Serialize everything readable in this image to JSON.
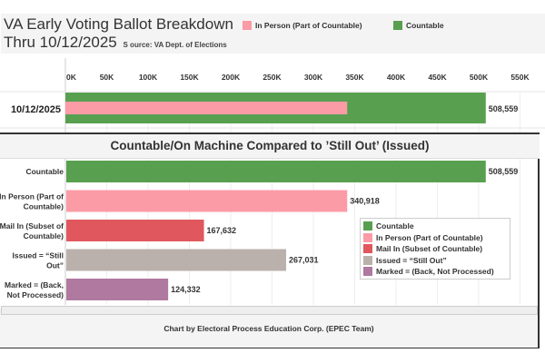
{
  "header": {
    "title_line1": "VA Early Voting Ballot Breakdown",
    "title_line2": "Thru 10/12/2025",
    "source": "S ource: VA Dept. of Elections"
  },
  "colors": {
    "countable": "#58a04f",
    "in_person": "#fb9ba6",
    "mail_in": "#e1575e",
    "issued": "#bab0ac",
    "marked": "#b0799f"
  },
  "top_legend": [
    {
      "label": "In Person  (Part of Countable)",
      "color": "#fb9ba6"
    },
    {
      "label": "Countable",
      "color": "#58a04f"
    }
  ],
  "chart_data": [
    {
      "type": "bar",
      "orientation": "horizontal",
      "title": "",
      "categories": [
        "10/12/2025"
      ],
      "series": [
        {
          "name": "Countable",
          "values": [
            508559
          ],
          "color": "#58a04f",
          "label": "508,559"
        },
        {
          "name": "In Person  (Part of Countable)",
          "values": [
            340918
          ],
          "color": "#fb9ba6"
        }
      ],
      "xlim": [
        0,
        550000
      ],
      "x_ticks": [
        "0K",
        "50K",
        "100K",
        "150K",
        "200K",
        "250K",
        "300K",
        "350K",
        "400K",
        "450K",
        "500K",
        "550K"
      ],
      "x_tick_values": [
        0,
        50000,
        100000,
        150000,
        200000,
        250000,
        300000,
        350000,
        400000,
        450000,
        500000,
        550000
      ],
      "grid": true,
      "legend": "top"
    },
    {
      "type": "bar",
      "orientation": "horizontal",
      "title": "Countable/On Machine Compared to ’Still Out’ (Issued)",
      "categories": [
        [
          "Countable"
        ],
        [
          "In Person  (Part of",
          "Countable)"
        ],
        [
          "Mail In (Subset of",
          "Countable)"
        ],
        [
          "Issued = “Still",
          "Out”"
        ],
        [
          "Marked = (Back,",
          "Not Processed)"
        ]
      ],
      "values": [
        508559,
        340918,
        167632,
        267031,
        124332
      ],
      "value_labels": [
        "508,559",
        "340,918",
        "167,632",
        "267,031",
        "124,332"
      ],
      "colors": [
        "#58a04f",
        "#fb9ba6",
        "#e1575e",
        "#bab0ac",
        "#b0799f"
      ],
      "xlim": [
        0,
        550000
      ],
      "grid": true,
      "legend": "bottom-right",
      "legend_entries": [
        {
          "label": "Countable",
          "color": "#58a04f"
        },
        {
          "label": "In Person  (Part of Countable)",
          "color": "#fb9ba6"
        },
        {
          "label": "Mail In (Subset of Countable)",
          "color": "#e1575e"
        },
        {
          "label": "Issued = “Still Out”",
          "color": "#bab0ac"
        },
        {
          "label": "Marked = (Back,  Not Processed)",
          "color": "#b0799f"
        }
      ]
    }
  ],
  "footer": {
    "credit": "Chart by Electoral Process Education Corp. (EPEC Team)"
  }
}
